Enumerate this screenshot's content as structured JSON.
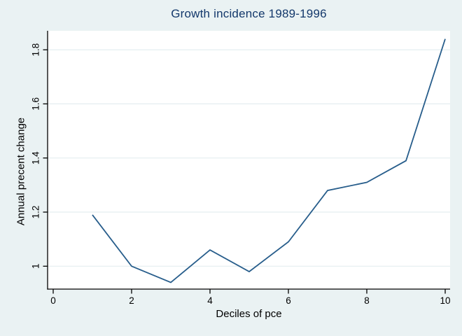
{
  "figure": {
    "background_color": "#eaf2f3",
    "plot_background_color": "#ffffff",
    "grid_color": "#e4eef0",
    "axis_color": "#000000",
    "tick_text_color": "#000000",
    "title_color": "#13386b"
  },
  "chart_data": {
    "type": "line",
    "title": "Growth incidence 1989-1996",
    "xlabel": "Deciles of pce",
    "ylabel": "Annual precent change",
    "x": [
      1,
      2,
      3,
      4,
      5,
      6,
      7,
      8,
      9,
      10
    ],
    "values": [
      1.19,
      1.0,
      0.94,
      1.06,
      0.98,
      1.09,
      1.28,
      1.31,
      1.39,
      1.84
    ],
    "line_color": "#275d8b",
    "x_ticks": [
      {
        "label": "0",
        "value": 0
      },
      {
        "label": "2",
        "value": 2
      },
      {
        "label": "4",
        "value": 4
      },
      {
        "label": "6",
        "value": 6
      },
      {
        "label": "8",
        "value": 8
      },
      {
        "label": "10",
        "value": 10
      }
    ],
    "y_ticks": [
      {
        "label": "1",
        "value": 1.0
      },
      {
        "label": "1.2",
        "value": 1.2
      },
      {
        "label": "1.4",
        "value": 1.4
      },
      {
        "label": "1.6",
        "value": 1.6
      },
      {
        "label": "1.8",
        "value": 1.8
      }
    ],
    "xlim": [
      0,
      10.3
    ],
    "ylim": [
      0.92,
      1.87
    ],
    "grid": "horizontal",
    "legend": "none"
  }
}
